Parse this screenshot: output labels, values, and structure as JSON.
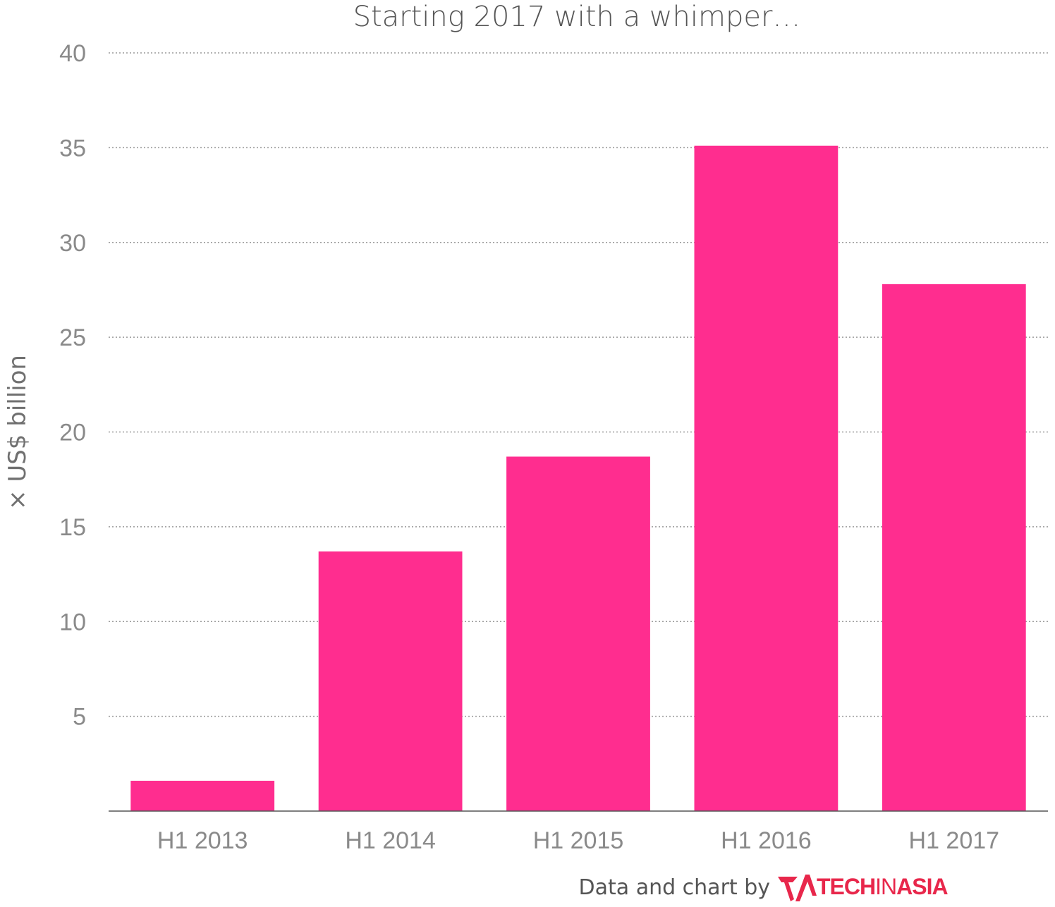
{
  "chart_data": {
    "type": "bar",
    "title": "Starting 2017 with a whimper…",
    "ylabel": "× US$ billion",
    "xlabel": "",
    "categories": [
      "H1 2013",
      "H1 2014",
      "H1 2015",
      "H1 2016",
      "H1 2017"
    ],
    "values": [
      1.6,
      13.7,
      18.7,
      35.1,
      27.8
    ],
    "ylim": [
      0,
      40
    ],
    "yticks": [
      5,
      10,
      15,
      20,
      25,
      30,
      35,
      40
    ],
    "grid": true,
    "bar_color": "#ff2d8f"
  },
  "credit": {
    "text": "Data and chart by",
    "logo_word_1": "TECH",
    "logo_word_2": "IN",
    "logo_word_3": "ASIA",
    "logo_color": "#e8274b"
  }
}
